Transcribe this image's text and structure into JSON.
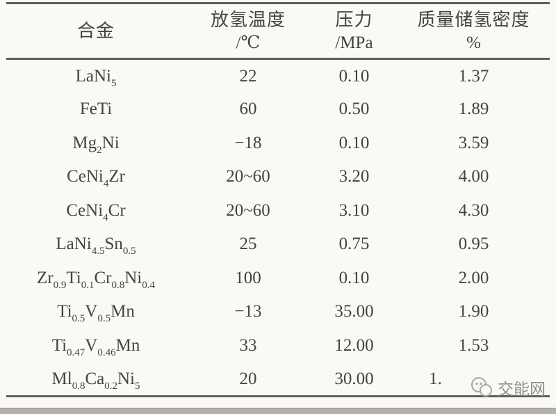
{
  "page": {
    "background": "#fbf9f6",
    "text_color": "#434343",
    "rule_color": "#5f5e5c",
    "bottom_bar_color": "#b3b0ad"
  },
  "table": {
    "headers": [
      {
        "line1": "合金",
        "line2": ""
      },
      {
        "line1": "放氢温度",
        "line2": "/℃"
      },
      {
        "line1": "压力",
        "line2": "/MPa"
      },
      {
        "line1": "质量储氢密度",
        "line2": "%"
      }
    ],
    "rows": [
      {
        "alloy": "LaNi_{5}",
        "temperature": "22",
        "pressure": "0.10",
        "density": "1.37"
      },
      {
        "alloy": "FeTi",
        "temperature": "60",
        "pressure": "0.50",
        "density": "1.89"
      },
      {
        "alloy": "Mg_{2}Ni",
        "temperature": "−18",
        "pressure": "0.10",
        "density": "3.59"
      },
      {
        "alloy": "CeNi_{4}Zr",
        "temperature": "20~60",
        "pressure": "3.20",
        "density": "4.00"
      },
      {
        "alloy": "CeNi_{4}Cr",
        "temperature": "20~60",
        "pressure": "3.10",
        "density": "4.30"
      },
      {
        "alloy": "LaNi_{4.5}Sn_{0.5}",
        "temperature": "25",
        "pressure": "0.75",
        "density": "0.95"
      },
      {
        "alloy": "Zr_{0.9}Ti_{0.1}Cr_{0.8}Ni_{0.4}",
        "temperature": "100",
        "pressure": "0.10",
        "density": "2.00"
      },
      {
        "alloy": "Ti_{0.5}V_{0.5}Mn",
        "temperature": "−13",
        "pressure": "35.00",
        "density": "1.90"
      },
      {
        "alloy": "Ti_{0.47}V_{0.46}Mn",
        "temperature": "33",
        "pressure": "12.00",
        "density": "1.53"
      },
      {
        "alloy": "Ml_{0.8}Ca_{0.2}Ni_{5}",
        "temperature": "20",
        "pressure": "30.00",
        "density": "1."
      }
    ]
  },
  "watermark": {
    "text": "交能网",
    "icon": "overlapping-circles-logo",
    "color": "#8f8d8a"
  },
  "chart_data": {
    "type": "table",
    "columns": [
      "合金",
      "放氢温度/℃",
      "压力/MPa",
      "质量储氢密度 %"
    ],
    "rows": [
      [
        "LaNi5",
        "22",
        "0.10",
        "1.37"
      ],
      [
        "FeTi",
        "60",
        "0.50",
        "1.89"
      ],
      [
        "Mg2Ni",
        "−18",
        "0.10",
        "3.59"
      ],
      [
        "CeNi4Zr",
        "20~60",
        "3.20",
        "4.00"
      ],
      [
        "CeNi4Cr",
        "20~60",
        "3.10",
        "4.30"
      ],
      [
        "LaNi4.5Sn0.5",
        "25",
        "0.75",
        "0.95"
      ],
      [
        "Zr0.9Ti0.1Cr0.8Ni0.4",
        "100",
        "0.10",
        "2.00"
      ],
      [
        "Ti0.5V0.5Mn",
        "−13",
        "35.00",
        "1.90"
      ],
      [
        "Ti0.47V0.46Mn",
        "33",
        "12.00",
        "1.53"
      ],
      [
        "Ml0.8Ca0.2Ni5",
        "20",
        "30.00",
        "1."
      ]
    ]
  }
}
